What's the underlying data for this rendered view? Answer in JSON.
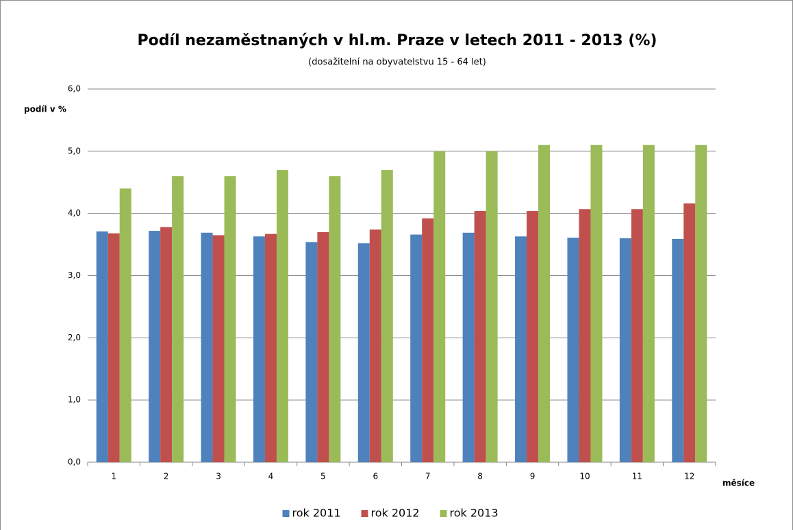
{
  "chart_data": {
    "type": "bar",
    "title": "Podíl nezaměstnaných  v hl.m. Praze v letech 2011 - 2013 (%)",
    "subtitle": "(dosažitelní na obyvatelstvu 15 - 64 let)",
    "y_label": "podíl v %",
    "x_label": "měsíce",
    "categories": [
      "1",
      "2",
      "3",
      "4",
      "5",
      "6",
      "7",
      "8",
      "9",
      "10",
      "11",
      "12"
    ],
    "series": [
      {
        "name": "rok 2011",
        "color": "#4f81bd",
        "values": [
          3.71,
          3.72,
          3.69,
          3.63,
          3.54,
          3.52,
          3.66,
          3.69,
          3.63,
          3.61,
          3.6,
          3.59
        ]
      },
      {
        "name": "rok 2012",
        "color": "#c0504d",
        "values": [
          3.68,
          3.78,
          3.65,
          3.67,
          3.7,
          3.74,
          3.92,
          4.04,
          4.04,
          4.07,
          4.07,
          4.16
        ]
      },
      {
        "name": "rok 2013",
        "color": "#9bbb59",
        "values": [
          4.4,
          4.6,
          4.6,
          4.7,
          4.6,
          4.7,
          5.0,
          5.0,
          5.1,
          5.1,
          5.1,
          5.1
        ]
      }
    ],
    "ylim": [
      0,
      6
    ],
    "yticks": [
      {
        "value": 0,
        "label": "0,0"
      },
      {
        "value": 1,
        "label": "1,0"
      },
      {
        "value": 2,
        "label": "2,0"
      },
      {
        "value": 3,
        "label": "3,0"
      },
      {
        "value": 4,
        "label": "4,0"
      },
      {
        "value": 5,
        "label": "5,0"
      },
      {
        "value": 6,
        "label": "6,0"
      }
    ],
    "grid": true,
    "legend": "bottom"
  }
}
